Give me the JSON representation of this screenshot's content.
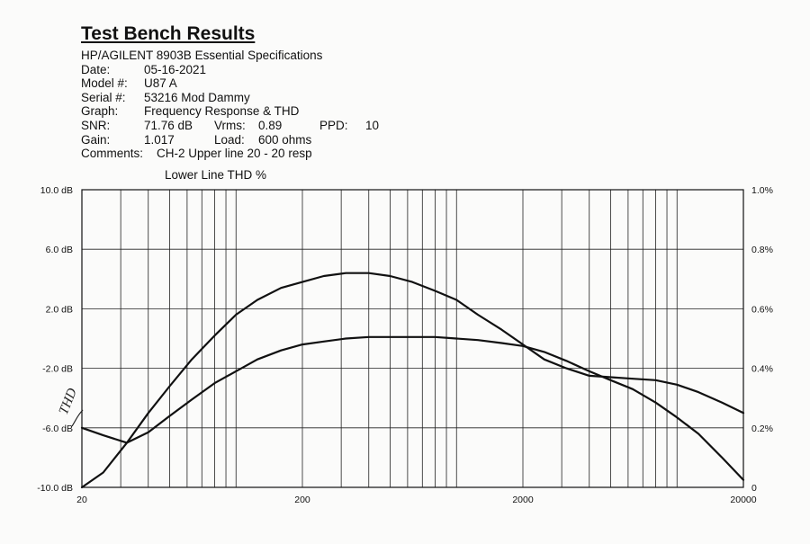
{
  "header": {
    "title": "Test Bench Results",
    "subtitle": "HP/AGILENT 8903B Essential Specifications",
    "date_label": "Date:",
    "date_value": "05-16-2021",
    "model_label": "Model #:",
    "model_value": "U87 A",
    "serial_label": "Serial #:",
    "serial_value": "53216 Mod Dammy",
    "graph_label": "Graph:",
    "graph_value": "Frequency Response & THD",
    "snr_label": "SNR:",
    "snr_value": "71.76 dB",
    "vrms_label": "Vrms:",
    "vrms_value": "0.89",
    "ppd_label": "PPD:",
    "ppd_value": "10",
    "gain_label": "Gain:",
    "gain_value": "1.017",
    "load_label": "Load:",
    "load_value": "600 ohms",
    "comments_label": "Comments:",
    "comments_value": "CH-2  Upper line 20 - 20 resp"
  },
  "chart_data": {
    "type": "line",
    "title": "Lower Line THD %",
    "xscale": "log",
    "xlim": [
      20,
      20000
    ],
    "x_ticks": [
      "20",
      "200",
      "2000",
      "20000"
    ],
    "x_tick_values": [
      20,
      200,
      2000,
      20000
    ],
    "y_left_lim": [
      -10,
      10
    ],
    "y_left_ticks": [
      "10.0 dB",
      "6.0 dB",
      "2.0 dB",
      "-2.0 dB",
      "-6.0 dB",
      "-10.0 dB"
    ],
    "y_left_tick_values": [
      10,
      6,
      2,
      -2,
      -6,
      -10
    ],
    "y_right_lim": [
      0,
      1.0
    ],
    "y_right_ticks": [
      "1.0%",
      "0.8%",
      "0.6%",
      "0.4%",
      "0.2%",
      "0"
    ],
    "y_right_tick_values": [
      1.0,
      0.8,
      0.6,
      0.4,
      0.2,
      0
    ],
    "grid": true,
    "annotation": "THD",
    "series": [
      {
        "axis": "left",
        "x": [
          20,
          25,
          32,
          40,
          50,
          63,
          80,
          100,
          125,
          160,
          200,
          250,
          315,
          400,
          500,
          630,
          800,
          1000,
          1250,
          1600,
          2000,
          2500,
          3150,
          4000,
          5000,
          6300,
          8000,
          10000,
          12500,
          16000,
          20000
        ],
        "y": [
          -6.0,
          -6.5,
          -7.0,
          -6.3,
          -5.2,
          -4.1,
          -3.0,
          -2.2,
          -1.4,
          -0.8,
          -0.4,
          -0.2,
          0.0,
          0.1,
          0.1,
          0.1,
          0.1,
          0.0,
          -0.1,
          -0.3,
          -0.5,
          -0.9,
          -1.5,
          -2.2,
          -2.8,
          -3.4,
          -4.3,
          -5.3,
          -6.4,
          -8.0,
          -9.5
        ]
      },
      {
        "axis": "right",
        "x": [
          20,
          25,
          32,
          40,
          50,
          63,
          80,
          100,
          125,
          160,
          200,
          250,
          315,
          400,
          500,
          630,
          800,
          1000,
          1250,
          1600,
          2000,
          2500,
          3150,
          4000,
          5000,
          6300,
          8000,
          10000,
          12500,
          16000,
          20000
        ],
        "y": [
          0.0,
          0.05,
          0.15,
          0.25,
          0.34,
          0.43,
          0.51,
          0.58,
          0.63,
          0.67,
          0.69,
          0.71,
          0.72,
          0.72,
          0.71,
          0.69,
          0.66,
          0.63,
          0.58,
          0.53,
          0.48,
          0.43,
          0.4,
          0.375,
          0.37,
          0.365,
          0.36,
          0.345,
          0.32,
          0.285,
          0.25
        ]
      }
    ]
  }
}
